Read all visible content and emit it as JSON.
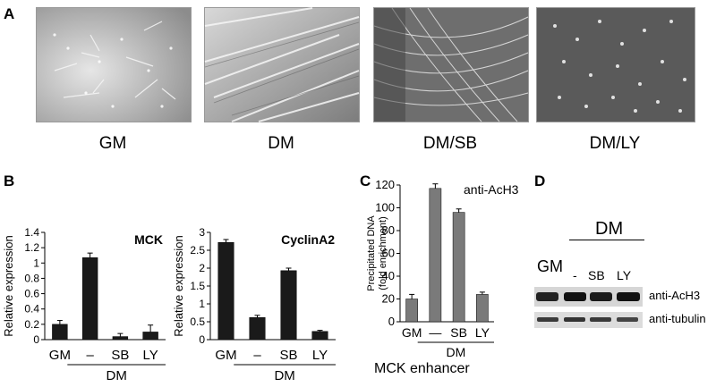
{
  "panel_a": {
    "letter": "A",
    "images": [
      {
        "label": "GM"
      },
      {
        "label": "DM"
      },
      {
        "label": "DM/SB"
      },
      {
        "label": "DM/LY"
      }
    ]
  },
  "panel_b": {
    "letter": "B"
  },
  "panel_c": {
    "letter": "C",
    "footer": "MCK enhancer"
  },
  "panel_d": {
    "letter": "D",
    "gm_label": "GM",
    "dm_label": "DM",
    "lanes": [
      "-",
      "SB",
      "LY"
    ],
    "rows": [
      {
        "label": "anti-AcH3"
      },
      {
        "label": "anti-tubulin"
      }
    ]
  },
  "chart_data": [
    {
      "type": "bar",
      "title": "MCK",
      "ylabel": "Relative expression",
      "categories": [
        "GM",
        "–",
        "SB",
        "LY"
      ],
      "group_label": "DM",
      "values": [
        0.2,
        1.07,
        0.04,
        0.1
      ],
      "errors": [
        0.05,
        0.06,
        0.04,
        0.09
      ],
      "ylim": [
        0,
        1.4
      ],
      "yticks": [
        "0",
        "0.2",
        "0.4",
        "0.6",
        "0.8",
        "1",
        "1.2",
        "1.4"
      ],
      "bar_color": "#1a1a1a"
    },
    {
      "type": "bar",
      "title": "CyclinA2",
      "ylabel": "Relative expression",
      "categories": [
        "GM",
        "–",
        "SB",
        "LY"
      ],
      "group_label": "DM",
      "values": [
        2.72,
        0.62,
        1.93,
        0.23
      ],
      "errors": [
        0.08,
        0.06,
        0.07,
        0.03
      ],
      "ylim": [
        0,
        3
      ],
      "yticks": [
        "0",
        "0.5",
        "1",
        "1.5",
        "2",
        "2.5",
        "3"
      ],
      "ytick_values": [
        0,
        0.5,
        1,
        1.5,
        2,
        2.5,
        3
      ],
      "bar_color": "#1a1a1a"
    },
    {
      "type": "bar",
      "title": "anti-AcH3",
      "ylabel": "Precipitated DNA (fold enrichment)",
      "categories": [
        "GM",
        "—",
        "SB",
        "LY"
      ],
      "group_label": "DM",
      "values": [
        20,
        117,
        96,
        24
      ],
      "errors": [
        4,
        4,
        3,
        2
      ],
      "ylim": [
        0,
        120
      ],
      "yticks": [
        "0",
        "20",
        "40",
        "60",
        "80",
        "100",
        "120"
      ],
      "bar_color": "#7a7a7a"
    }
  ]
}
